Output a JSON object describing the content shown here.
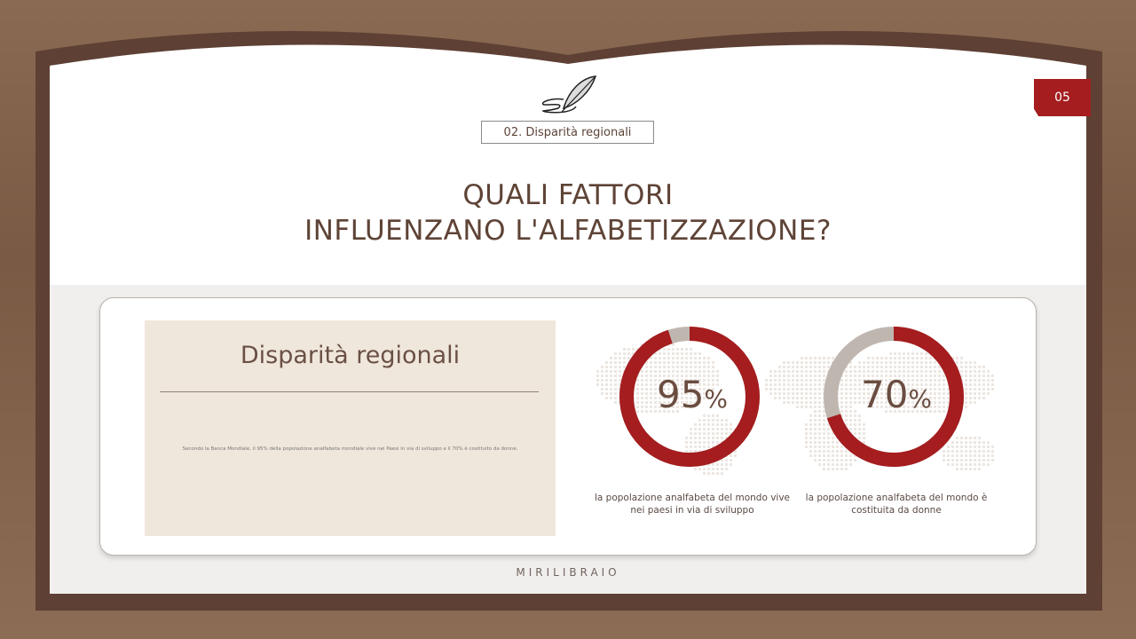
{
  "page_number": "05",
  "section_tag": "02. Disparità regionali",
  "title_line1": "QUALI FATTORI",
  "title_line2": "INFLUENZANO L'ALFABETIZZAZIONE?",
  "panel": {
    "heading": "Disparità regionali",
    "body": "Secondo la Banca Mondiale, il 95% della popolazione analfabeta mondiale vive nei Paesi in via di sviluppo e il 70% è costituito da donne."
  },
  "stats": [
    {
      "value": 95,
      "number": "95",
      "unit": "%",
      "caption": "la popolazione analfabeta del mondo vive nei paesi in via di sviluppo"
    },
    {
      "value": 70,
      "number": "70",
      "unit": "%",
      "caption": "la popolazione analfabeta del mondo è costituita da donne"
    }
  ],
  "footer": "MIRILIBRAIO",
  "colors": {
    "accent": "#a51d1f",
    "track": "#bfb6b0",
    "frame": "#5e4034",
    "text": "#5e4336"
  }
}
